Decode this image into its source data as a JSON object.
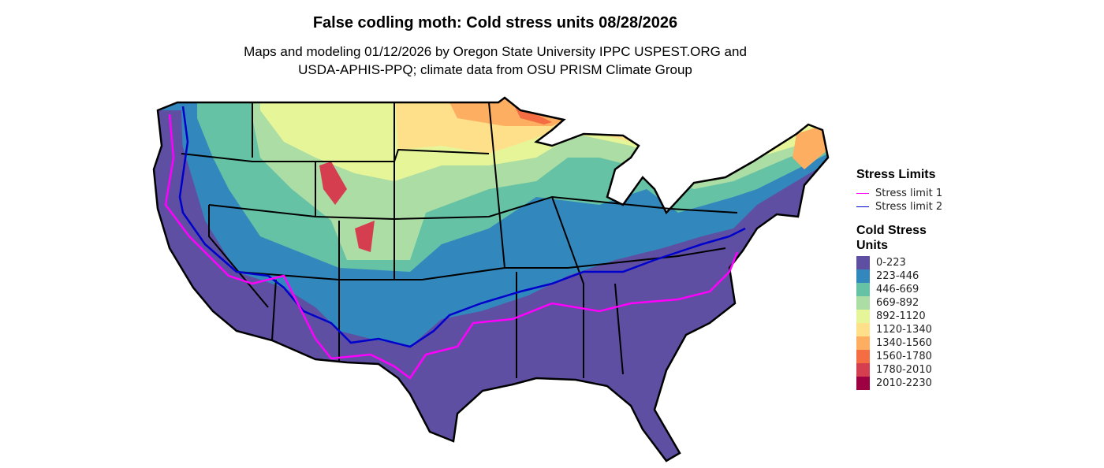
{
  "title": "False codling moth: Cold stress units 08/28/2026",
  "subtitle_line1": "Maps and modeling 01/12/2026 by Oregon State University IPPC USPEST.ORG and",
  "subtitle_line2": "USDA-APHIS-PPQ; climate data from OSU PRISM Climate Group",
  "legend": {
    "stress_title": "Stress Limits",
    "stress_items": [
      {
        "label": "Stress limit 1",
        "color": "#FF00FF"
      },
      {
        "label": "Stress limit 2",
        "color": "#0000CD"
      }
    ],
    "units_title_line1": "Cold Stress",
    "units_title_line2": "Units",
    "bins": [
      {
        "label": "0-223",
        "color": "#5E4FA2"
      },
      {
        "label": "223-446",
        "color": "#3288BD"
      },
      {
        "label": "446-669",
        "color": "#66C2A5"
      },
      {
        "label": "669-892",
        "color": "#ABDDA4"
      },
      {
        "label": "892-1120",
        "color": "#E6F598"
      },
      {
        "label": "1120-1340",
        "color": "#FEE08B"
      },
      {
        "label": "1340-1560",
        "color": "#FDAE61"
      },
      {
        "label": "1560-1780",
        "color": "#F46D43"
      },
      {
        "label": "1780-2010",
        "color": "#D53E4F"
      },
      {
        "label": "2010-2230",
        "color": "#9E0142"
      }
    ]
  }
}
